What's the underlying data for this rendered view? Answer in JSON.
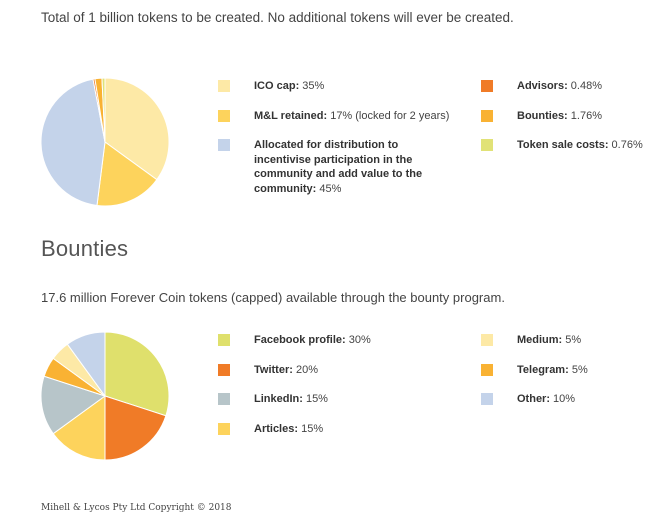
{
  "intro": "Total of 1 billion tokens to be created. No additional tokens will ever be created.",
  "bounties_heading": "Bounties",
  "bounties_intro": "17.6 million Forever Coin tokens (capped) available through the bounty program.",
  "footer": "Mihell & Lycos Pty Ltd Copyright © 2018",
  "token_distribution": {
    "legend": [
      {
        "name": "ICO cap:",
        "value": " 35%",
        "color": "#fde9a6"
      },
      {
        "name": "M&L retained:",
        "value": " 17% (locked for 2 years)",
        "color": "#fdd35c"
      },
      {
        "name": "Allocated for distribution to incentivise participation in the community and add value to the community:",
        "value": " 45%",
        "color": "#c4d3ea"
      },
      {
        "name": "Advisors:",
        "value": " 0.48%",
        "color": "#f07b27"
      },
      {
        "name": "Bounties:",
        "value": " 1.76%",
        "color": "#f9b233"
      },
      {
        "name": "Token sale costs:",
        "value": " 0.76%",
        "color": "#e1e277"
      }
    ]
  },
  "bounty_program": {
    "legend": [
      {
        "name": "Facebook profile:",
        "value": " 30%",
        "color": "#dfe06c"
      },
      {
        "name": "Twitter:",
        "value": " 20%",
        "color": "#f07b27"
      },
      {
        "name": "LinkedIn:",
        "value": " 15%",
        "color": "#b7c5c9"
      },
      {
        "name": "Articles:",
        "value": " 15%",
        "color": "#fdd35c"
      },
      {
        "name": "Medium:",
        "value": " 5%",
        "color": "#fde9a6"
      },
      {
        "name": "Telegram:",
        "value": " 5%",
        "color": "#f9b233"
      },
      {
        "name": "Other:",
        "value": " 10%",
        "color": "#c4d3ea"
      }
    ]
  },
  "chart_data": [
    {
      "type": "pie",
      "labels": [
        "ICO cap",
        "M&L retained",
        "Allocated for distribution to incentivise participation in the community and add value to the community",
        "Advisors",
        "Bounties",
        "Token sale costs"
      ],
      "values": [
        35,
        17,
        45,
        0.48,
        1.76,
        0.76
      ],
      "colors": [
        "#fde9a6",
        "#fdd35c",
        "#c4d3ea",
        "#f07b27",
        "#f9b233",
        "#e1e277"
      ],
      "legend": "right"
    },
    {
      "type": "pie",
      "labels": [
        "Facebook profile",
        "Twitter",
        "LinkedIn",
        "Articles",
        "Medium",
        "Telegram",
        "Other"
      ],
      "values": [
        30,
        20,
        15,
        15,
        5,
        5,
        10
      ],
      "colors": [
        "#dfe06c",
        "#f07b27",
        "#b7c5c9",
        "#fdd35c",
        "#fde9a6",
        "#f9b233",
        "#c4d3ea"
      ],
      "legend": "right",
      "draw_order": [
        0,
        1,
        3,
        2,
        5,
        4,
        6
      ]
    }
  ]
}
